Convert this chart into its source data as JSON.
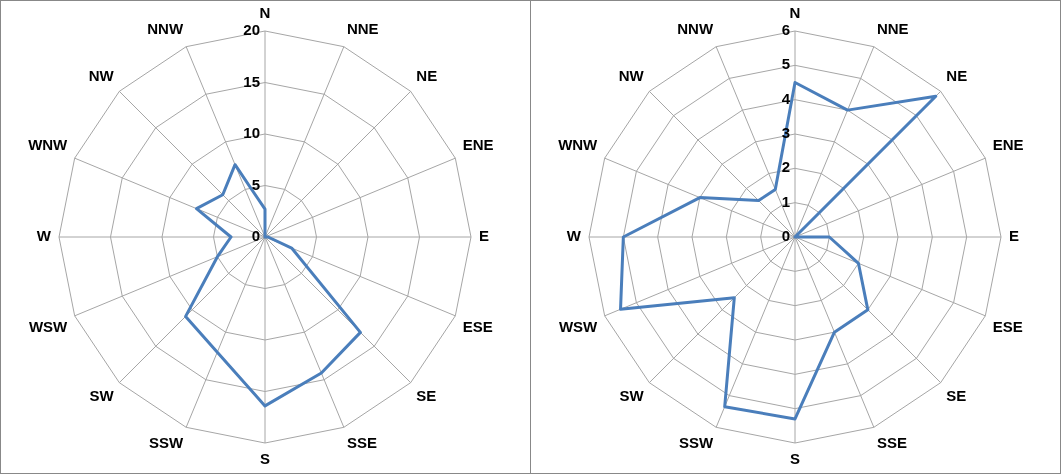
{
  "chart_data": [
    {
      "type": "radar",
      "categories": [
        "N",
        "NNE",
        "NE",
        "ENE",
        "E",
        "ESE",
        "SE",
        "SSE",
        "S",
        "SSW",
        "SW",
        "WSW",
        "W",
        "WNW",
        "NW",
        "NNW"
      ],
      "series": [
        {
          "color": "#4a7ebb",
          "values": [
            2.7,
            0,
            0,
            0,
            0.3,
            2.8,
            13.1,
            14.3,
            16.4,
            12.1,
            10.9,
            5,
            3.3,
            7.2,
            5.8,
            7.6
          ]
        }
      ],
      "ylim": [
        0,
        20
      ],
      "yticks": [
        0,
        5,
        10,
        15,
        20
      ],
      "grid": true,
      "marker": "none",
      "line_style": "solid"
    },
    {
      "type": "radar",
      "categories": [
        "N",
        "NNE",
        "NE",
        "ENE",
        "E",
        "ESE",
        "SE",
        "SSE",
        "S",
        "SSW",
        "SW",
        "WSW",
        "W",
        "WNW",
        "NW",
        "NNW"
      ],
      "series": [
        {
          "color": "#4a7ebb",
          "values": [
            4.5,
            4,
            5.8,
            0,
            1,
            2,
            3,
            3,
            5.3,
            5.35,
            2.5,
            5.5,
            5,
            3,
            1.5,
            1.5
          ]
        }
      ],
      "ylim": [
        0,
        6
      ],
      "yticks": [
        0,
        1,
        2,
        3,
        4,
        5,
        6
      ],
      "grid": true,
      "marker": "none",
      "line_style": "solid"
    }
  ]
}
